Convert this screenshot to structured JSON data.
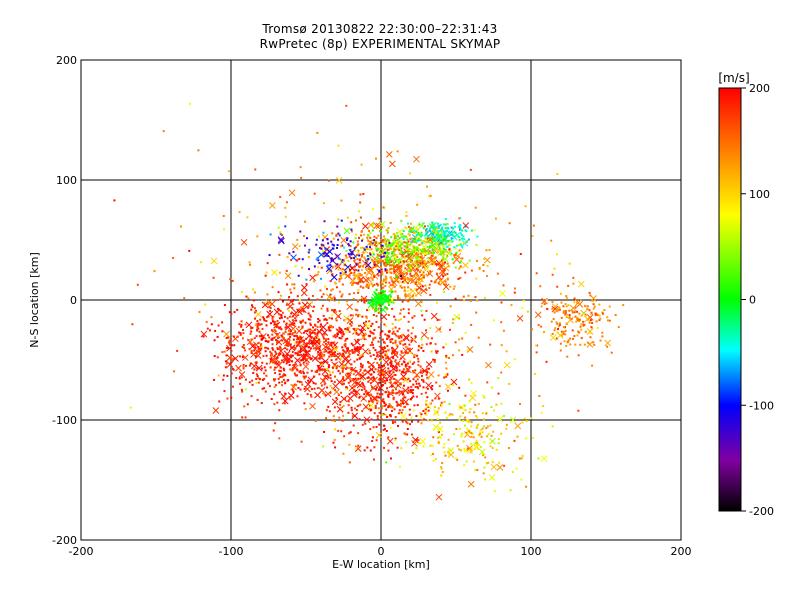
{
  "title": "Tromsø 20130822 22:30:00–22:31:43",
  "subtitle": "RwPretec (8p) EXPERIMENTAL SKYMAP",
  "chart_data": {
    "type": "scatter",
    "title": "Tromsø 20130822 22:30:00–22:31:43",
    "subtitle": "RwPretec (8p) EXPERIMENTAL SKYMAP",
    "xlabel": "E-W location [km]",
    "ylabel": "N-S location [km]",
    "xlim": [
      -200,
      200
    ],
    "ylim": [
      -200,
      200
    ],
    "xticks": [
      "-200",
      "-100",
      "0",
      "100",
      "200"
    ],
    "yticks": [
      "-200",
      "-100",
      "0",
      "100",
      "200"
    ],
    "grid": true,
    "colorbar": {
      "label": "[m/s]",
      "range": [
        -200,
        200
      ],
      "ticks": [
        "200",
        "100",
        "0",
        "-100",
        "-200"
      ],
      "colormap": [
        "#000000",
        "#8000a0",
        "#0000ff",
        "#00ffff",
        "#00ff00",
        "#ffff00",
        "#ff8000",
        "#ff0000"
      ]
    },
    "markers": {
      "dot": "single-echo point",
      "cross": "multi-echo point"
    },
    "series_summary": [
      {
        "region": "center",
        "x": 0,
        "y": 0,
        "v": 0,
        "note": "green/cyan cluster"
      },
      {
        "region": "north-east",
        "x": 40,
        "y": 55,
        "v": -30,
        "note": "cyan cluster"
      },
      {
        "region": "south-west",
        "x": -60,
        "y": -40,
        "v": 190,
        "note": "dense red"
      },
      {
        "region": "south",
        "x": 0,
        "y": -60,
        "v": 190,
        "note": "dense red"
      },
      {
        "region": "north",
        "x": 10,
        "y": 30,
        "v": 150,
        "note": "orange/red"
      },
      {
        "region": "east",
        "x": 130,
        "y": -15,
        "v": 130,
        "note": "sparse orange"
      }
    ]
  }
}
